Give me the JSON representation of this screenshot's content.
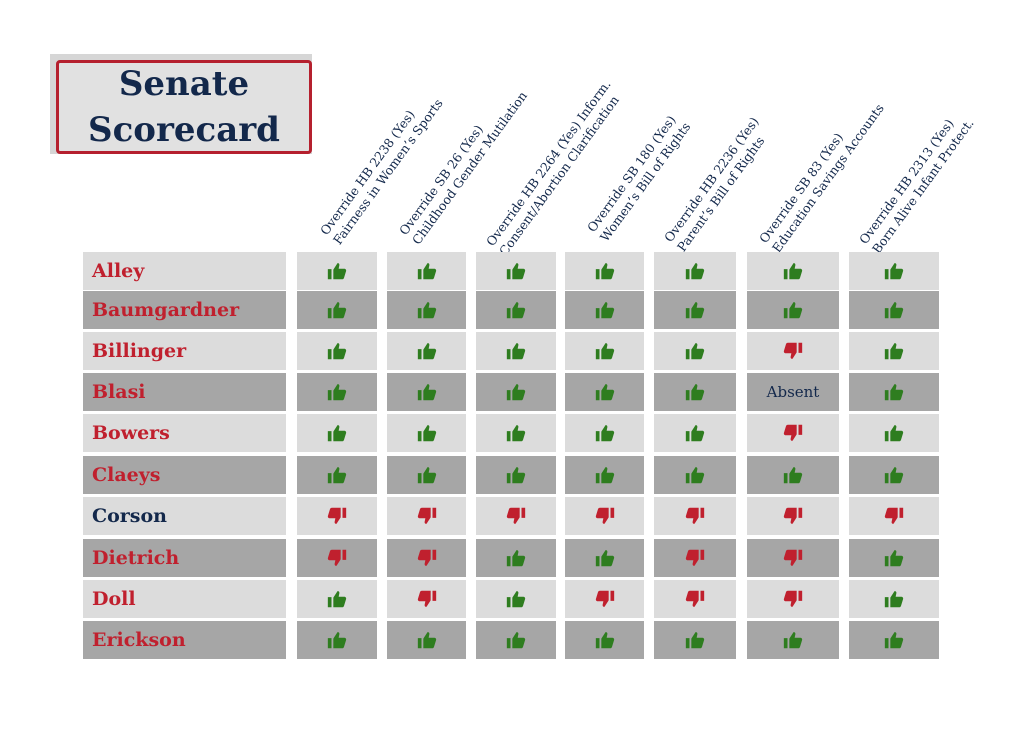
{
  "title": {
    "line1": "Senate",
    "line2": "Scorecard"
  },
  "colors": {
    "republican_name": "#c0202e",
    "democrat_name": "#13284b",
    "yes": "#2e7d1f",
    "no": "#c0202e",
    "row_light": "#dcdcdc",
    "row_dark": "#a6a6a6"
  },
  "columns": [
    {
      "line1": "Override HB 2238 (Yes)",
      "line2": "Fairness in Women’s Sports"
    },
    {
      "line1": "Override SB 26 (Yes)",
      "line2": "Childhood Gender Mutilation"
    },
    {
      "line1": "Override HB 2264 (Yes) Inform.",
      "line2": "Consent/Abortion Clarification"
    },
    {
      "line1": "Override SB 180 (Yes)",
      "line2": "Women’s Bill of Rights"
    },
    {
      "line1": "Override HB 2236 (Yes)",
      "line2": "Parent’s Bill of Rights"
    },
    {
      "line1": "Override SB 83 (Yes)",
      "line2": "Education Savings Accounts"
    },
    {
      "line1": "Override HB 2313 (Yes)",
      "line2": "Born Alive Infant Protect."
    }
  ],
  "vote_legend": {
    "up": "thumbs-up-icon",
    "down": "thumbs-down-icon",
    "absent_label": "Absent"
  },
  "senators": [
    {
      "name": "Alley",
      "party_color": "red",
      "votes": [
        "up",
        "up",
        "up",
        "up",
        "up",
        "up",
        "up"
      ]
    },
    {
      "name": "Baumgardner",
      "party_color": "red",
      "votes": [
        "up",
        "up",
        "up",
        "up",
        "up",
        "up",
        "up"
      ]
    },
    {
      "name": "Billinger",
      "party_color": "red",
      "votes": [
        "up",
        "up",
        "up",
        "up",
        "up",
        "down",
        "up"
      ]
    },
    {
      "name": "Blasi",
      "party_color": "red",
      "votes": [
        "up",
        "up",
        "up",
        "up",
        "up",
        "absent",
        "up"
      ]
    },
    {
      "name": "Bowers",
      "party_color": "red",
      "votes": [
        "up",
        "up",
        "up",
        "up",
        "up",
        "down",
        "up"
      ]
    },
    {
      "name": "Claeys",
      "party_color": "red",
      "votes": [
        "up",
        "up",
        "up",
        "up",
        "up",
        "up",
        "up"
      ]
    },
    {
      "name": "Corson",
      "party_color": "navy",
      "votes": [
        "down",
        "down",
        "down",
        "down",
        "down",
        "down",
        "down"
      ]
    },
    {
      "name": "Dietrich",
      "party_color": "red",
      "votes": [
        "down",
        "down",
        "up",
        "up",
        "down",
        "down",
        "up"
      ]
    },
    {
      "name": "Doll",
      "party_color": "red",
      "votes": [
        "up",
        "down",
        "up",
        "down",
        "down",
        "down",
        "up"
      ]
    },
    {
      "name": "Erickson",
      "party_color": "red",
      "votes": [
        "up",
        "up",
        "up",
        "up",
        "up",
        "up",
        "up"
      ]
    }
  ]
}
